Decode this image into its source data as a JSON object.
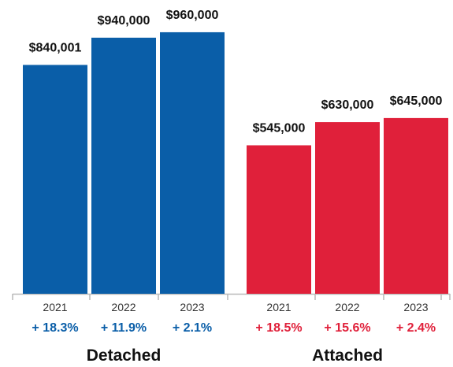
{
  "chart_data": {
    "type": "bar",
    "ylim": [
      0,
      1000000
    ],
    "grid": false,
    "groups": [
      {
        "name": "Detached",
        "color": "#0a5ea8",
        "categories": [
          "2021",
          "2022",
          "2023"
        ],
        "values": [
          840001,
          940000,
          960000
        ],
        "value_labels": [
          "$840,001",
          "$940,000",
          "$960,000"
        ],
        "changes": [
          "+ 18.3%",
          "+ 11.9%",
          "+ 2.1%"
        ]
      },
      {
        "name": "Attached",
        "color": "#e0203a",
        "categories": [
          "2021",
          "2022",
          "2023"
        ],
        "values": [
          545000,
          630000,
          645000
        ],
        "value_labels": [
          "$545,000",
          "$630,000",
          "$645,000"
        ],
        "changes": [
          "+ 18.5%",
          "+ 15.6%",
          "+ 2.4%"
        ]
      }
    ]
  }
}
